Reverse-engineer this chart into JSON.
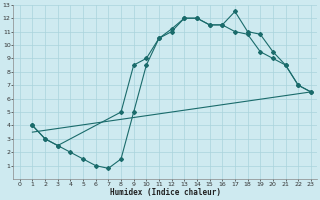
{
  "xlabel": "Humidex (Indice chaleur)",
  "bg_color": "#ceeaf0",
  "grid_color": "#aad4dc",
  "line_color": "#1a6b6b",
  "xlim": [
    -0.5,
    23.5
  ],
  "ylim": [
    0,
    13
  ],
  "xticks": [
    0,
    1,
    2,
    3,
    4,
    5,
    6,
    7,
    8,
    9,
    10,
    11,
    12,
    13,
    14,
    15,
    16,
    17,
    18,
    19,
    20,
    21,
    22,
    23
  ],
  "yticks": [
    1,
    2,
    3,
    4,
    5,
    6,
    7,
    8,
    9,
    10,
    11,
    12,
    13
  ],
  "curve1_x": [
    1,
    2,
    3,
    4,
    5,
    6,
    7,
    8,
    9,
    10,
    11,
    12,
    13,
    14,
    15,
    16,
    17,
    18,
    19,
    20,
    21,
    22,
    23
  ],
  "curve1_y": [
    4.0,
    3.0,
    2.5,
    2.0,
    1.5,
    1.0,
    0.8,
    1.5,
    5.0,
    8.5,
    10.5,
    11.0,
    12.0,
    12.0,
    11.5,
    11.5,
    12.5,
    11.0,
    10.8,
    9.5,
    8.5,
    7.0,
    6.5
  ],
  "curve2_x": [
    1,
    2,
    3,
    8,
    9,
    10,
    11,
    12,
    13,
    14,
    15,
    16,
    17,
    18,
    19,
    20,
    21,
    22,
    23
  ],
  "curve2_y": [
    4.0,
    3.0,
    2.5,
    5.0,
    8.5,
    9.0,
    10.5,
    11.2,
    12.0,
    12.0,
    11.5,
    11.5,
    11.0,
    10.8,
    9.5,
    9.0,
    8.5,
    7.0,
    6.5
  ],
  "curve3_x": [
    1,
    23
  ],
  "curve3_y": [
    3.5,
    6.5
  ]
}
